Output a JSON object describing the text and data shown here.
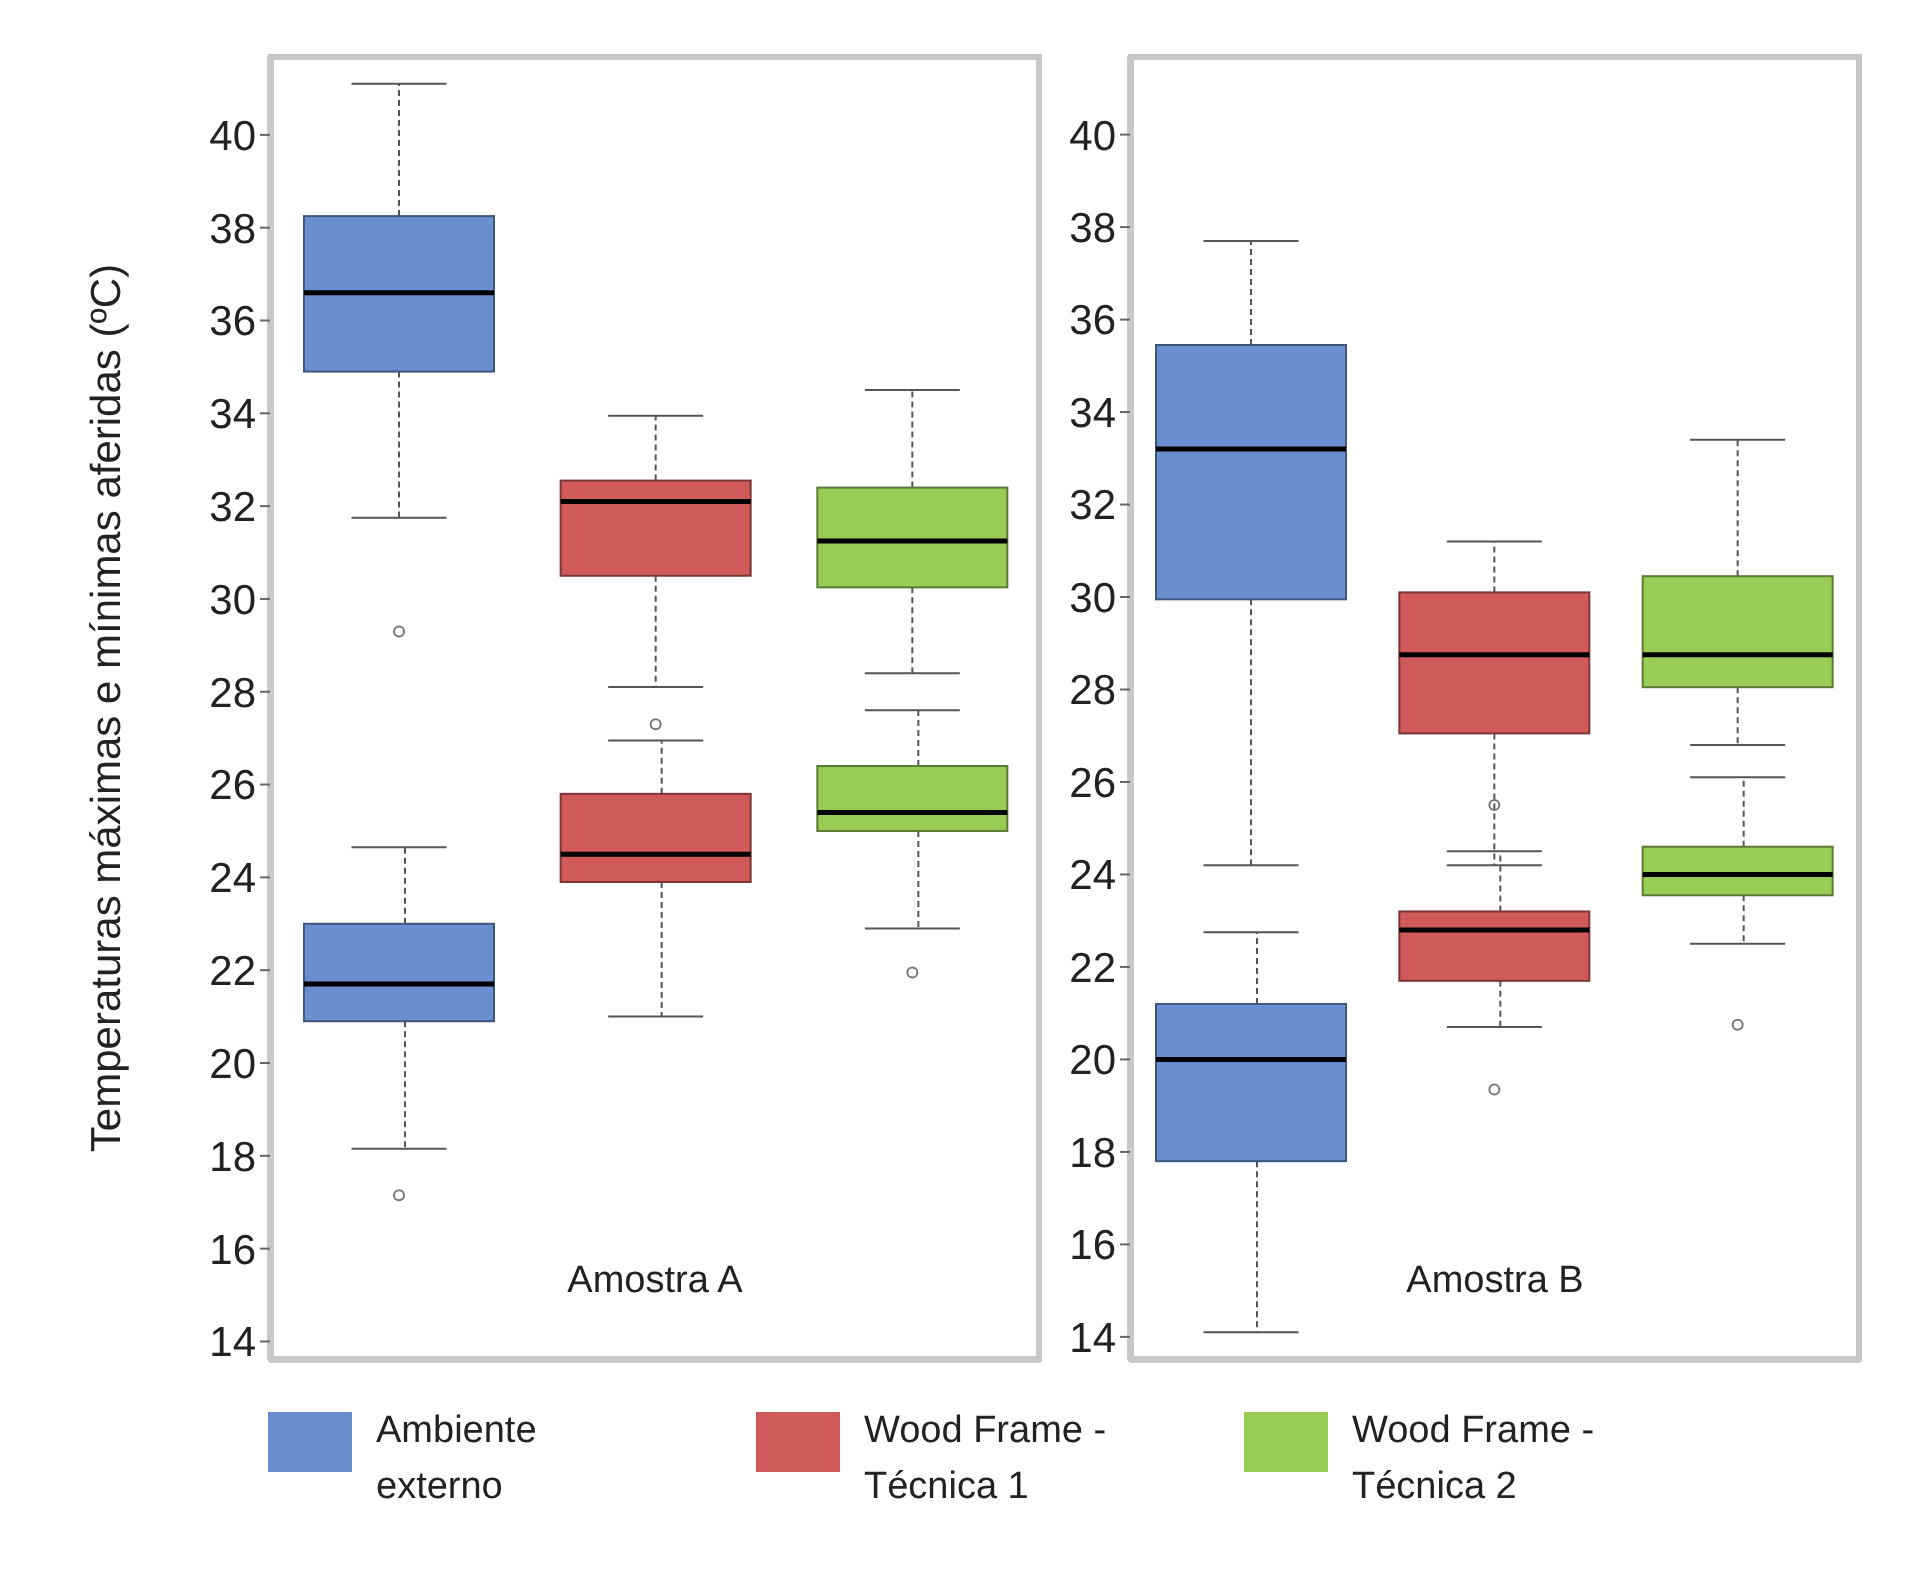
{
  "chart_data": [
    {
      "type": "box",
      "ylabel": "Temperaturas máximas e mínimas aferidas (ºC)",
      "annotations": [
        "Amostra A",
        "Ambiente externo",
        "Wood Frame - Técnica 1",
        "Wood Frame - Técnica 2"
      ],
      "categories": [
        null,
        null,
        null
      ],
      "ylim": [
        13.6,
        41.7
      ],
      "yticks": [
        14,
        16,
        18,
        20,
        22,
        24,
        26,
        28,
        30,
        32,
        34,
        36,
        38,
        40
      ],
      "tick_labels": "y",
      "grid": false,
      "series": [
        {
          "colors": [
            "#6a8fd0",
            "#d05a5a",
            "#99cc55"
          ],
          "boxes": [
            {
              "low": 31.75,
              "q1": 34.9,
              "median": 36.6,
              "q3": 38.25,
              "high": 41.1,
              "outliers": [
                29.3
              ]
            },
            {
              "low": 28.1,
              "q1": 30.5,
              "median": 32.1,
              "q3": 32.55,
              "high": 33.95,
              "outliers": [
                27.3
              ]
            },
            {
              "low": 28.4,
              "q1": 30.25,
              "median": 31.25,
              "q3": 32.4,
              "high": 34.5
            }
          ]
        },
        {
          "colors": [
            "#6a8fd0",
            "#d05a5a",
            "#99cc55"
          ],
          "boxes": [
            {
              "low": 18.15,
              "q1": 20.9,
              "median": 21.7,
              "q3": 23.0,
              "high": 24.65,
              "outliers": [
                17.15
              ]
            },
            {
              "low": 21.0,
              "q1": 23.9,
              "median": 24.5,
              "q3": 25.8,
              "high": 26.95
            },
            {
              "low": 22.9,
              "q1": 25.0,
              "median": 25.4,
              "q3": 26.4,
              "high": 27.6,
              "outliers": [
                21.95
              ]
            }
          ]
        }
      ]
    },
    {
      "type": "box",
      "annotations": [
        "Amostra B"
      ],
      "categories": [
        null,
        null,
        null
      ],
      "ylim": [
        13.5,
        41.7
      ],
      "yticks": [
        14,
        16,
        18,
        20,
        22,
        24,
        26,
        28,
        30,
        32,
        34,
        36,
        38,
        40
      ],
      "tick_labels": "y",
      "grid": false,
      "series": [
        {
          "colors": [
            "#6a8fd0",
            "#d05a5a",
            "#99cc55"
          ],
          "boxes": [
            {
              "low": 24.2,
              "q1": 29.95,
              "median": 33.2,
              "q3": 35.45,
              "high": 37.7
            },
            {
              "low": 24.2,
              "q1": 27.05,
              "median": 28.75,
              "q3": 30.1,
              "high": 31.2
            },
            {
              "low": 26.8,
              "q1": 28.05,
              "median": 28.75,
              "q3": 30.45,
              "high": 33.4
            }
          ]
        },
        {
          "colors": [
            "#6a8fd0",
            "#d05a5a",
            "#99cc55"
          ],
          "boxes": [
            {
              "low": 14.1,
              "q1": 17.8,
              "median": 20.0,
              "q3": 21.2,
              "high": 22.75
            },
            {
              "low": 20.7,
              "q1": 21.7,
              "median": 22.8,
              "q3": 23.2,
              "high": 24.5,
              "outliers": [
                25.5,
                19.35
              ]
            },
            {
              "low": 22.5,
              "q1": 23.55,
              "median": 24.0,
              "q3": 24.6,
              "high": 26.1,
              "outliers": [
                20.75
              ]
            }
          ]
        }
      ]
    }
  ]
}
